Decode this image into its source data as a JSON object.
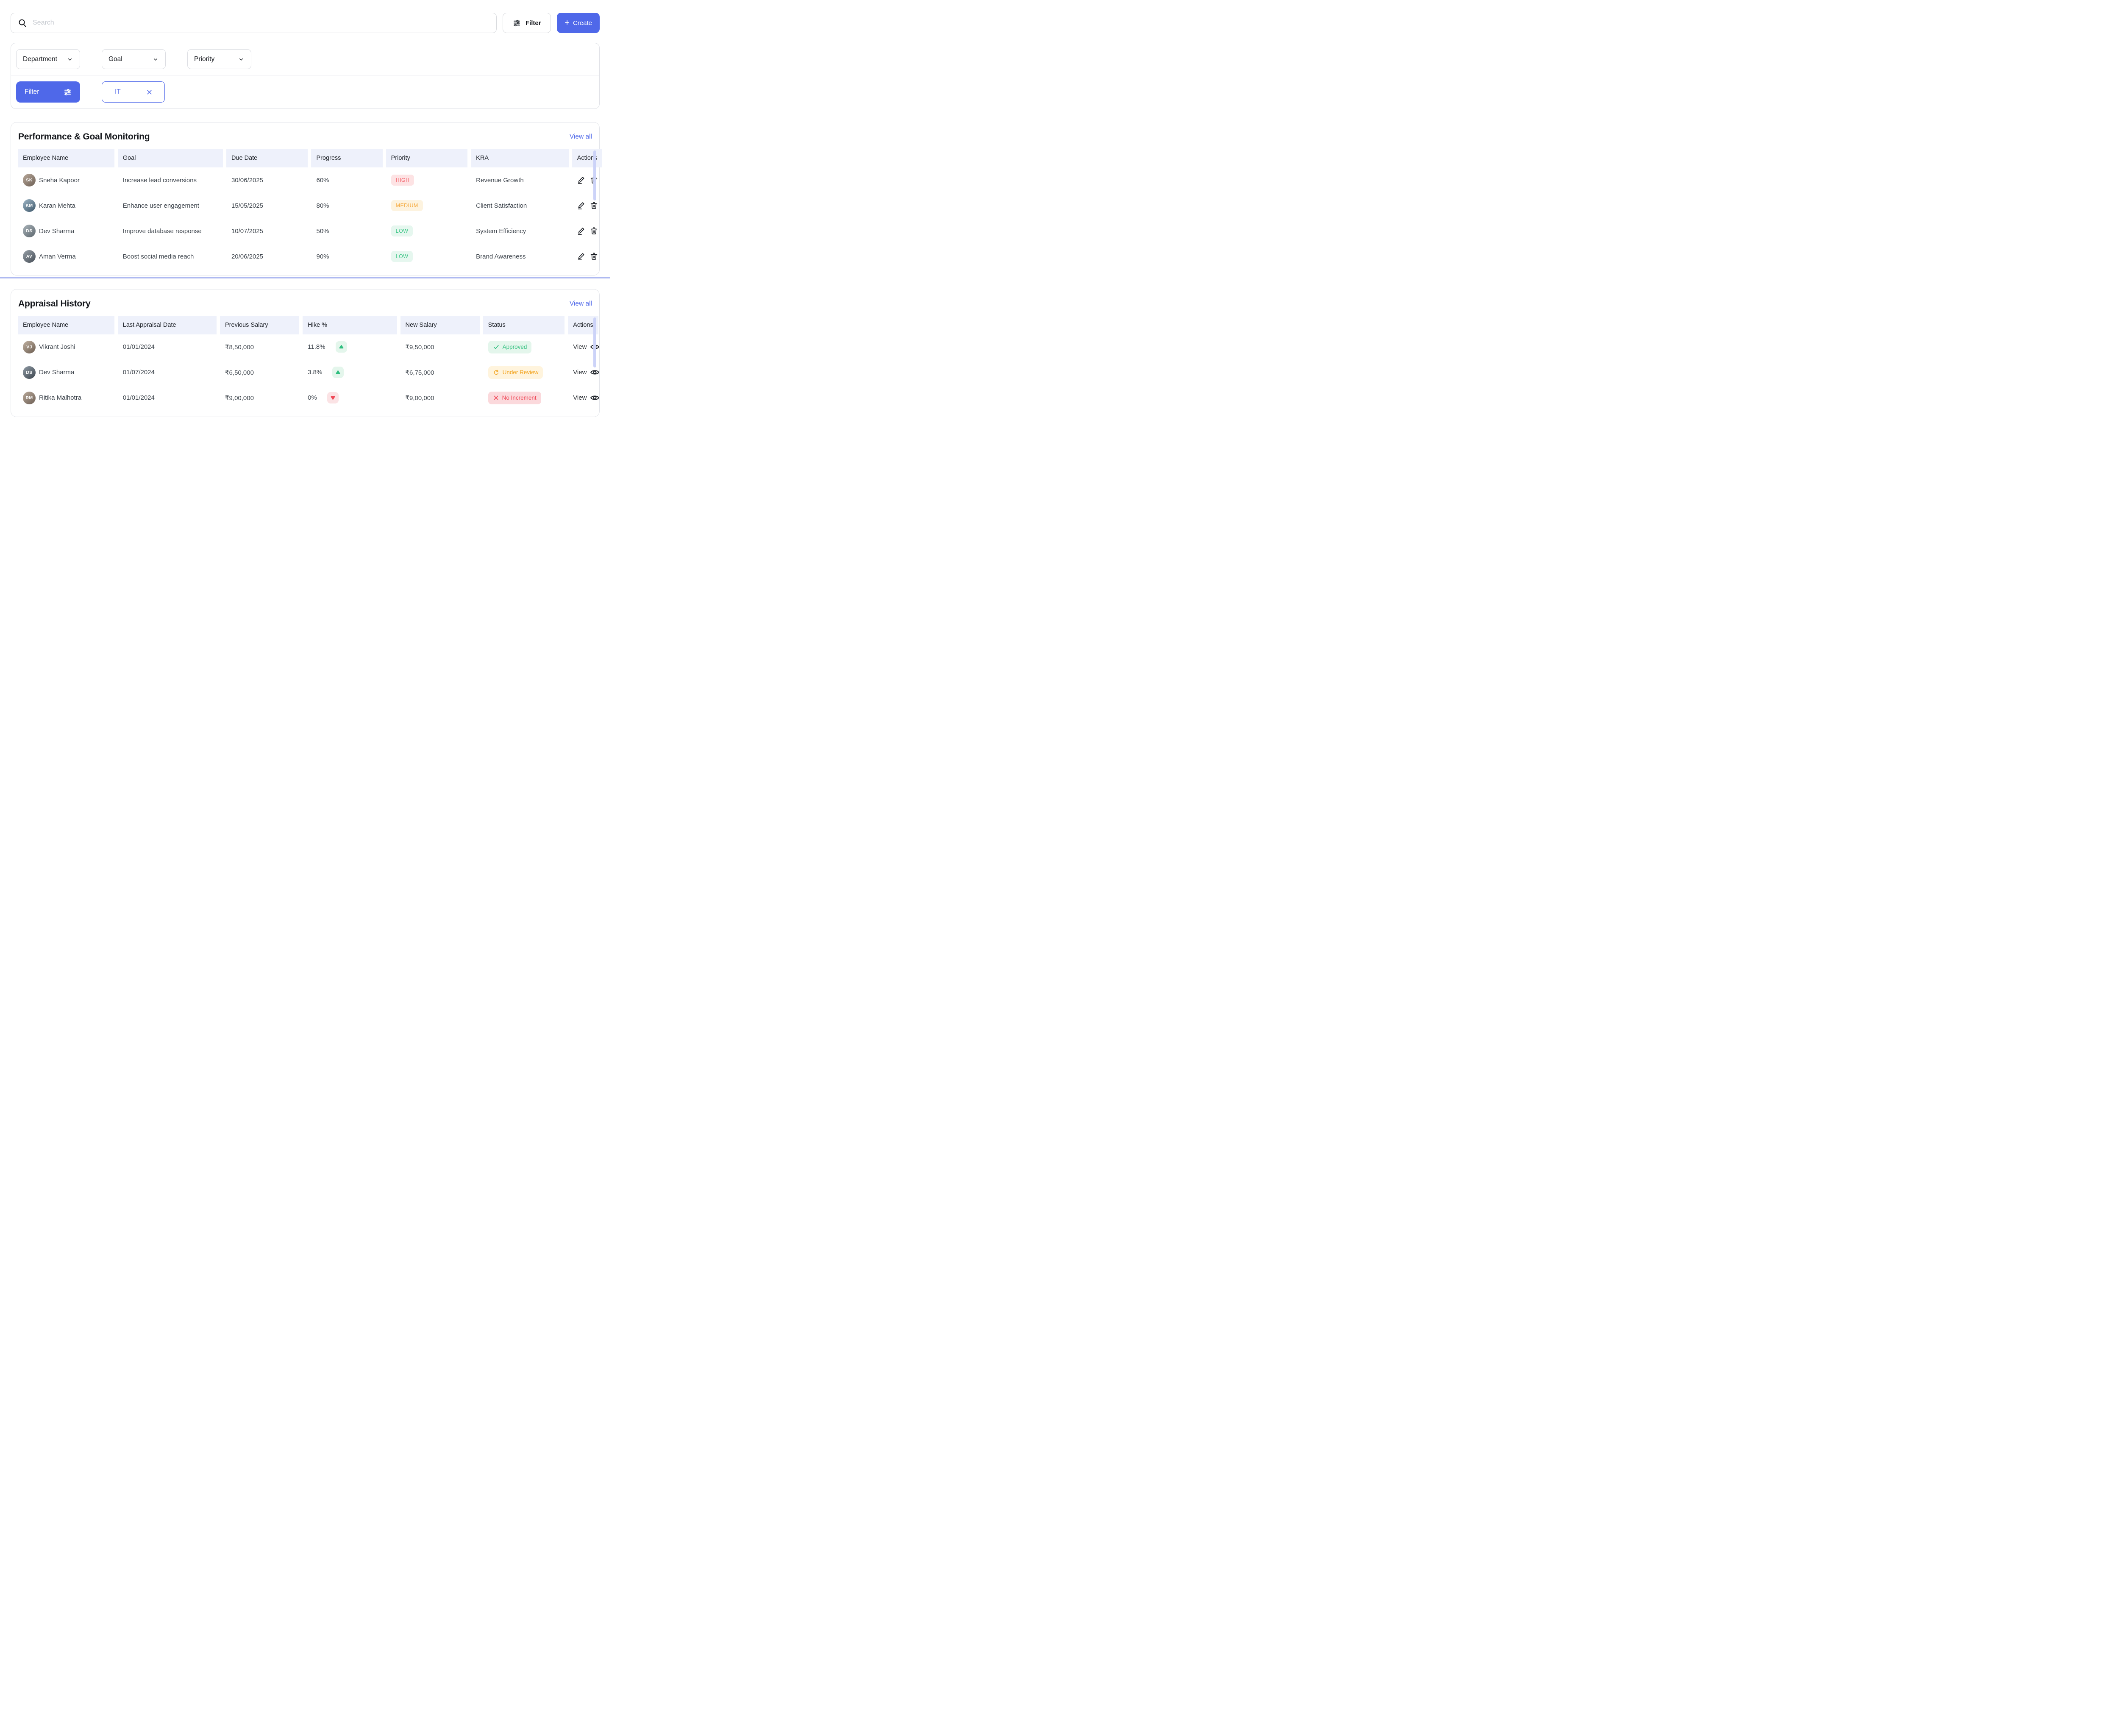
{
  "toolbar": {
    "search_placeholder": "Search",
    "filter_label": "Filter",
    "create_plus": "+",
    "create_label": "Create"
  },
  "filters": {
    "dropdowns": [
      {
        "label": "Department"
      },
      {
        "label": "Goal"
      },
      {
        "label": "Priority"
      }
    ],
    "filter_button_label": "Filter",
    "active_chips": [
      {
        "label": "IT"
      }
    ]
  },
  "colors": {
    "accent_blue": "#4F68E9",
    "divider_blue": "#AEB9F1",
    "header_cell_bg": "#EEF1FB",
    "high_bg": "#FDE3E4",
    "high_text": "#F25C66",
    "medium_bg": "#FDF3DF",
    "medium_text": "#F5A93D",
    "low_bg": "#E6F7EF",
    "low_text": "#3DC586",
    "approved_bg": "#E4F6EC",
    "approved_text": "#2FC07E",
    "under_review_bg": "#FFF4DD",
    "under_review_text": "#F3A41F",
    "no_increment_bg": "#FBD9DC",
    "no_increment_text": "#EF4857"
  },
  "sections": [
    {
      "title": "Performance & Goal Monitoring",
      "view_all": "View all",
      "columns": [
        "Employee Name",
        "Goal",
        "Due Date",
        "Progress",
        "Priority",
        "KRA",
        "Actions"
      ],
      "rows": [
        {
          "name": "Sneha Kapoor",
          "initials": "SK",
          "goal": "Increase lead conversions",
          "due": "30/06/2025",
          "progress": "60%",
          "priority": "HIGH",
          "priority_level": "high",
          "kra": "Revenue Growth"
        },
        {
          "name": "Karan Mehta",
          "initials": "KM",
          "goal": "Enhance user engagement",
          "due": "15/05/2025",
          "progress": "80%",
          "priority": "MEDIUM",
          "priority_level": "medium",
          "kra": "Client Satisfaction"
        },
        {
          "name": "Dev Sharma",
          "initials": "DS",
          "goal": "Improve database response",
          "due": "10/07/2025",
          "progress": "50%",
          "priority": "LOW",
          "priority_level": "low",
          "kra": "System Efficiency"
        },
        {
          "name": "Aman Verma",
          "initials": "AV",
          "goal": "Boost social media reach",
          "due": "20/06/2025",
          "progress": "90%",
          "priority": "LOW",
          "priority_level": "low",
          "kra": "Brand Awareness"
        }
      ]
    },
    {
      "title": "Appraisal History",
      "view_all": "View all",
      "columns": [
        "Employee Name",
        "Last Appraisal Date",
        "Previous Salary",
        "Hike %",
        "New Salary",
        "Status",
        "Actions"
      ],
      "rows": [
        {
          "name": "Vikrant Joshi",
          "initials": "VJ",
          "date": "01/01/2024",
          "prev_salary": "₹8,50,000",
          "hike": "11.8%",
          "hike_dir": "up",
          "new_salary": "₹9,50,000",
          "status": "Approved",
          "status_key": "approved",
          "action": "View"
        },
        {
          "name": "Dev Sharma",
          "initials": "DS",
          "date": "01/07/2024",
          "prev_salary": "₹6,50,000",
          "hike": "3.8%",
          "hike_dir": "up",
          "new_salary": "₹6,75,000",
          "status": "Under Review",
          "status_key": "under-review",
          "action": "View"
        },
        {
          "name": "Ritika Malhotra",
          "initials": "RM",
          "date": "01/01/2024",
          "prev_salary": "₹9,00,000",
          "hike": "0%",
          "hike_dir": "down",
          "new_salary": "₹9,00,000",
          "status": "No Increment",
          "status_key": "no-increment",
          "action": "View"
        }
      ]
    }
  ]
}
